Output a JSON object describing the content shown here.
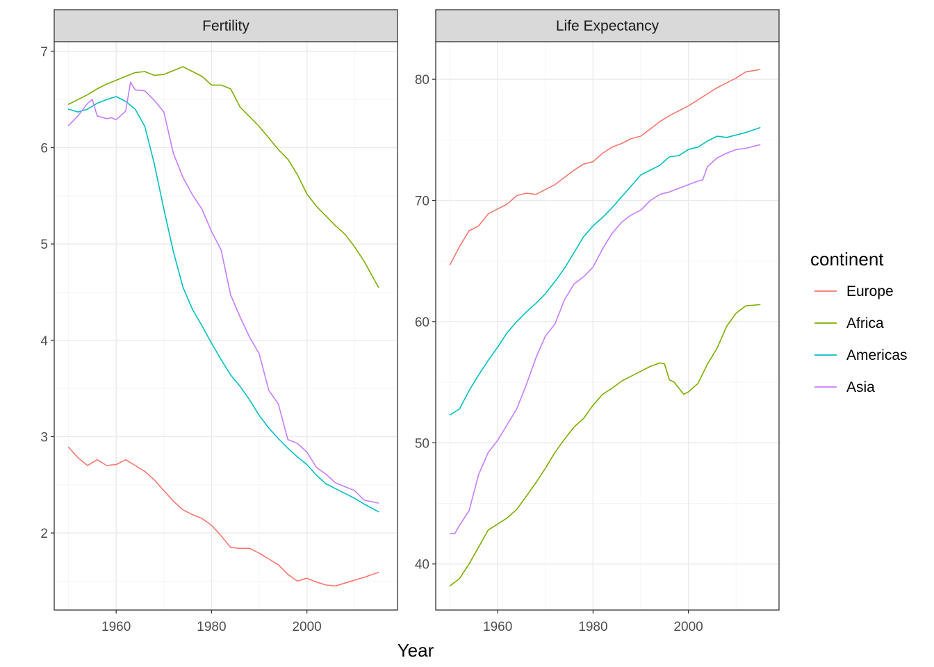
{
  "colors": {
    "Europe": "#F8766D",
    "Africa": "#7CAE00",
    "Americas": "#00BFC4",
    "Asia": "#C77CFF",
    "strip_fill": "#D9D9D9",
    "grid_major": "#EBEBEB",
    "grid_minor": "#F5F5F5",
    "panel_border": "#333333",
    "tick_text": "#4D4D4D"
  },
  "chart_data": {
    "type": "line",
    "xlabel": "Year",
    "legend": {
      "title": "continent",
      "entries": [
        "Europe",
        "Africa",
        "Americas",
        "Asia"
      ],
      "position": "right"
    },
    "grid": true,
    "panels": [
      {
        "strip": "Fertility",
        "xlim": [
          1947,
          2019
        ],
        "ylim": [
          1.2,
          7.1
        ],
        "xticks": [
          1960,
          1980,
          2000
        ],
        "yticks": [
          2,
          3,
          4,
          5,
          6,
          7
        ],
        "series": [
          {
            "name": "Europe",
            "x": [
              1950,
              1952,
              1954,
              1956,
              1958,
              1960,
              1962,
              1964,
              1966,
              1968,
              1970,
              1972,
              1974,
              1976,
              1978,
              1980,
              1982,
              1984,
              1986,
              1988,
              1990,
              1992,
              1994,
              1996,
              1998,
              2000,
              2002,
              2004,
              2006,
              2008,
              2010,
              2012,
              2015
            ],
            "y": [
              2.89,
              2.78,
              2.7,
              2.76,
              2.7,
              2.71,
              2.76,
              2.7,
              2.64,
              2.55,
              2.44,
              2.33,
              2.24,
              2.19,
              2.15,
              2.08,
              1.97,
              1.85,
              1.84,
              1.84,
              1.79,
              1.73,
              1.67,
              1.57,
              1.5,
              1.53,
              1.49,
              1.46,
              1.45,
              1.48,
              1.51,
              1.54,
              1.59
            ]
          },
          {
            "name": "Africa",
            "x": [
              1950,
              1952,
              1954,
              1956,
              1958,
              1960,
              1962,
              1964,
              1966,
              1968,
              1970,
              1972,
              1974,
              1976,
              1978,
              1980,
              1982,
              1984,
              1986,
              1988,
              1990,
              1992,
              1994,
              1996,
              1998,
              2000,
              2002,
              2004,
              2006,
              2008,
              2010,
              2012,
              2015
            ],
            "y": [
              6.45,
              6.5,
              6.55,
              6.61,
              6.66,
              6.7,
              6.74,
              6.78,
              6.79,
              6.75,
              6.76,
              6.8,
              6.84,
              6.79,
              6.74,
              6.65,
              6.65,
              6.61,
              6.42,
              6.32,
              6.22,
              6.1,
              5.98,
              5.88,
              5.72,
              5.52,
              5.39,
              5.29,
              5.19,
              5.1,
              4.97,
              4.82,
              4.55
            ]
          },
          {
            "name": "Americas",
            "x": [
              1950,
              1952,
              1954,
              1956,
              1958,
              1960,
              1962,
              1964,
              1966,
              1968,
              1970,
              1972,
              1974,
              1976,
              1978,
              1980,
              1982,
              1984,
              1986,
              1988,
              1990,
              1992,
              1994,
              1996,
              1998,
              2000,
              2002,
              2004,
              2006,
              2008,
              2010,
              2012,
              2015
            ],
            "y": [
              6.4,
              6.37,
              6.4,
              6.46,
              6.5,
              6.53,
              6.48,
              6.4,
              6.22,
              5.83,
              5.36,
              4.92,
              4.55,
              4.32,
              4.15,
              3.97,
              3.8,
              3.64,
              3.52,
              3.38,
              3.22,
              3.09,
              2.98,
              2.88,
              2.79,
              2.71,
              2.6,
              2.51,
              2.46,
              2.41,
              2.36,
              2.3,
              2.22
            ]
          },
          {
            "name": "Asia",
            "x": [
              1950,
              1952,
              1954,
              1955,
              1956,
              1958,
              1959,
              1960,
              1962,
              1963,
              1964,
              1966,
              1968,
              1970,
              1972,
              1974,
              1976,
              1978,
              1980,
              1982,
              1984,
              1986,
              1988,
              1990,
              1992,
              1994,
              1996,
              1998,
              2000,
              2002,
              2004,
              2006,
              2008,
              2010,
              2012,
              2015
            ],
            "y": [
              6.23,
              6.33,
              6.46,
              6.5,
              6.33,
              6.3,
              6.31,
              6.29,
              6.38,
              6.68,
              6.6,
              6.59,
              6.49,
              6.37,
              5.94,
              5.69,
              5.51,
              5.36,
              5.13,
              4.94,
              4.47,
              4.24,
              4.03,
              3.86,
              3.48,
              3.34,
              2.97,
              2.93,
              2.84,
              2.68,
              2.61,
              2.52,
              2.48,
              2.44,
              2.34,
              2.31
            ]
          }
        ]
      },
      {
        "strip": "Life Expectancy",
        "xlim": [
          1947,
          2019
        ],
        "ylim": [
          36.2,
          83.1
        ],
        "xticks": [
          1960,
          1980,
          2000
        ],
        "yticks": [
          40,
          50,
          60,
          70,
          80
        ],
        "series": [
          {
            "name": "Europe",
            "x": [
              1950,
              1952,
              1954,
              1956,
              1958,
              1960,
              1962,
              1964,
              1966,
              1968,
              1970,
              1972,
              1974,
              1976,
              1978,
              1980,
              1982,
              1984,
              1986,
              1988,
              1990,
              1992,
              1994,
              1996,
              1998,
              2000,
              2002,
              2004,
              2006,
              2008,
              2010,
              2012,
              2015
            ],
            "y": [
              64.7,
              66.2,
              67.5,
              67.9,
              68.9,
              69.3,
              69.7,
              70.4,
              70.6,
              70.5,
              70.9,
              71.3,
              71.9,
              72.5,
              73.0,
              73.2,
              73.9,
              74.4,
              74.7,
              75.1,
              75.3,
              75.9,
              76.5,
              77.0,
              77.4,
              77.8,
              78.3,
              78.8,
              79.3,
              79.7,
              80.1,
              80.6,
              80.8
            ]
          },
          {
            "name": "Africa",
            "x": [
              1950,
              1952,
              1954,
              1956,
              1958,
              1960,
              1962,
              1964,
              1966,
              1968,
              1970,
              1972,
              1974,
              1976,
              1978,
              1980,
              1982,
              1984,
              1986,
              1988,
              1990,
              1992,
              1994,
              1995,
              1996,
              1997,
              1998,
              1999,
              2000,
              2002,
              2004,
              2006,
              2008,
              2010,
              2012,
              2015
            ],
            "y": [
              38.2,
              38.8,
              40.0,
              41.4,
              42.8,
              43.3,
              43.8,
              44.5,
              45.6,
              46.7,
              47.9,
              49.2,
              50.3,
              51.3,
              52.0,
              53.1,
              54.0,
              54.5,
              55.1,
              55.5,
              55.9,
              56.3,
              56.6,
              56.5,
              55.2,
              55.0,
              54.5,
              54.0,
              54.2,
              54.9,
              56.5,
              57.8,
              59.6,
              60.7,
              61.3,
              61.4
            ]
          },
          {
            "name": "Americas",
            "x": [
              1950,
              1952,
              1954,
              1956,
              1958,
              1960,
              1962,
              1964,
              1966,
              1968,
              1970,
              1972,
              1974,
              1976,
              1978,
              1980,
              1982,
              1984,
              1986,
              1988,
              1990,
              1992,
              1994,
              1996,
              1998,
              2000,
              2002,
              2004,
              2006,
              2008,
              2010,
              2012,
              2015
            ],
            "y": [
              52.3,
              52.8,
              54.3,
              55.6,
              56.8,
              57.9,
              59.1,
              60.0,
              60.8,
              61.5,
              62.3,
              63.3,
              64.4,
              65.7,
              67.0,
              67.9,
              68.6,
              69.4,
              70.3,
              71.2,
              72.1,
              72.5,
              72.9,
              73.6,
              73.7,
              74.2,
              74.4,
              74.9,
              75.3,
              75.2,
              75.4,
              75.6,
              76.0
            ]
          },
          {
            "name": "Asia",
            "x": [
              1950,
              1951,
              1952,
              1954,
              1956,
              1958,
              1960,
              1962,
              1964,
              1966,
              1968,
              1970,
              1972,
              1974,
              1976,
              1978,
              1980,
              1982,
              1984,
              1986,
              1988,
              1990,
              1992,
              1994,
              1996,
              1998,
              2000,
              2002,
              2003,
              2004,
              2006,
              2008,
              2010,
              2012,
              2015
            ],
            "y": [
              42.5,
              42.5,
              43.2,
              44.4,
              47.4,
              49.2,
              50.2,
              51.5,
              52.8,
              54.8,
              57.0,
              58.8,
              59.8,
              61.8,
              63.1,
              63.7,
              64.5,
              66.0,
              67.3,
              68.2,
              68.8,
              69.2,
              70.0,
              70.5,
              70.7,
              71.0,
              71.3,
              71.6,
              71.7,
              72.8,
              73.5,
              73.9,
              74.2,
              74.3,
              74.6
            ]
          }
        ]
      }
    ]
  }
}
